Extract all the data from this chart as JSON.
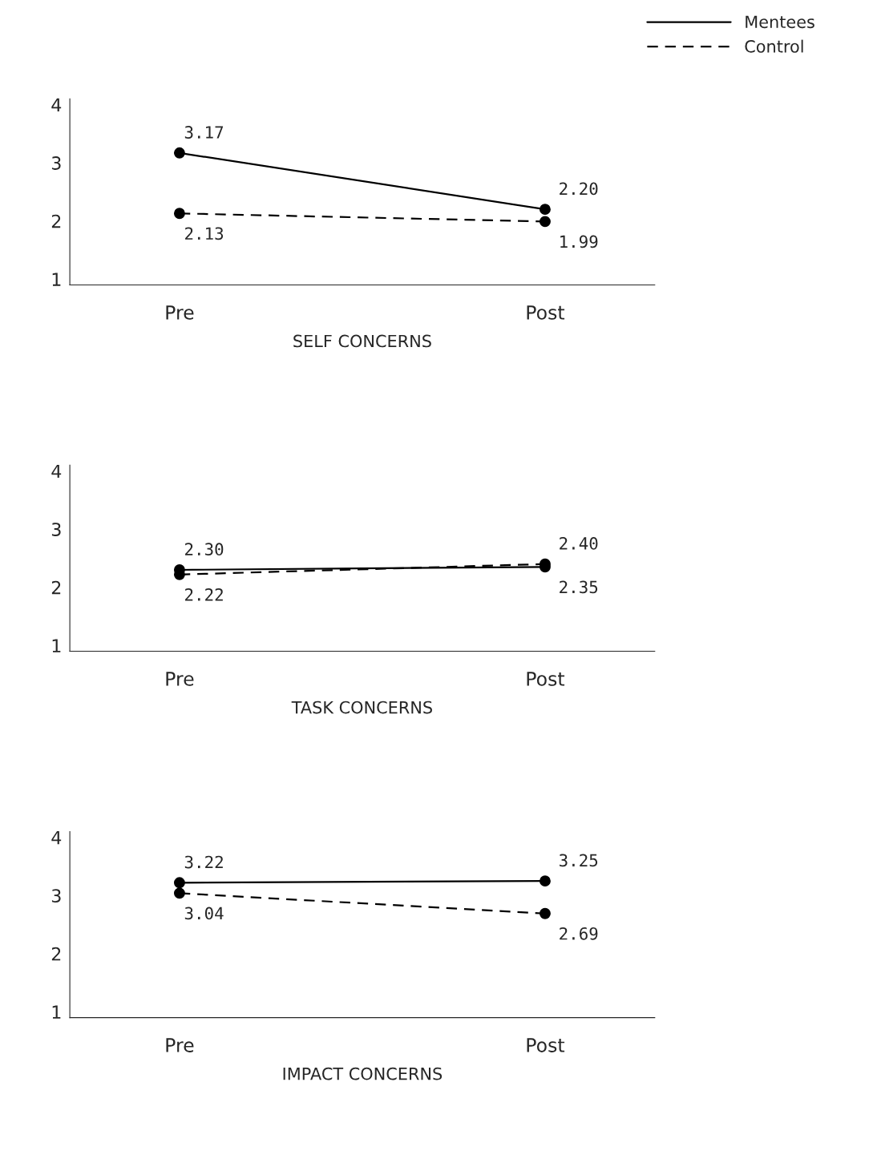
{
  "chart_data": [
    {
      "type": "line",
      "xlabel": "SELF CONCERNS",
      "categories": [
        "Pre",
        "Post"
      ],
      "ylim": [
        0.9,
        4.1
      ],
      "yticks": [
        1,
        2,
        3,
        4
      ],
      "grid": false,
      "legend": "top right",
      "marker": "circle",
      "series": [
        {
          "name": "Mentees",
          "color": "#000000",
          "line_style": "solid",
          "values": [
            3.17,
            2.2
          ],
          "value_labels": [
            "3.17",
            "2.20"
          ]
        },
        {
          "name": "Control",
          "color": "#000000",
          "line_style": "dashed",
          "values": [
            2.13,
            1.99
          ],
          "value_labels": [
            "2.13",
            "1.99"
          ]
        }
      ]
    },
    {
      "type": "line",
      "xlabel": "TASK CONCERNS",
      "categories": [
        "Pre",
        "Post"
      ],
      "ylim": [
        0.9,
        4.1
      ],
      "yticks": [
        1,
        2,
        3,
        4
      ],
      "grid": false,
      "marker": "circle",
      "series": [
        {
          "color": "#000000",
          "line_style": "solid",
          "values": [
            2.3,
            2.35
          ],
          "value_labels": [
            "2.30",
            "2.35"
          ]
        },
        {
          "color": "#000000",
          "line_style": "dashed",
          "values": [
            2.22,
            2.4
          ],
          "value_labels": [
            "2.22",
            "2.40"
          ]
        }
      ]
    },
    {
      "type": "line",
      "xlabel": "IMPACT CONCERNS",
      "categories": [
        "Pre",
        "Post"
      ],
      "ylim": [
        0.9,
        4.1
      ],
      "yticks": [
        1,
        2,
        3,
        4
      ],
      "grid": false,
      "marker": "circle",
      "series": [
        {
          "color": "#000000",
          "line_style": "solid",
          "values": [
            3.22,
            3.25
          ],
          "value_labels": [
            "3.22",
            "3.25"
          ]
        },
        {
          "color": "#000000",
          "line_style": "dashed",
          "values": [
            3.04,
            2.69
          ],
          "value_labels": [
            "3.04",
            "2.69"
          ]
        }
      ]
    }
  ]
}
